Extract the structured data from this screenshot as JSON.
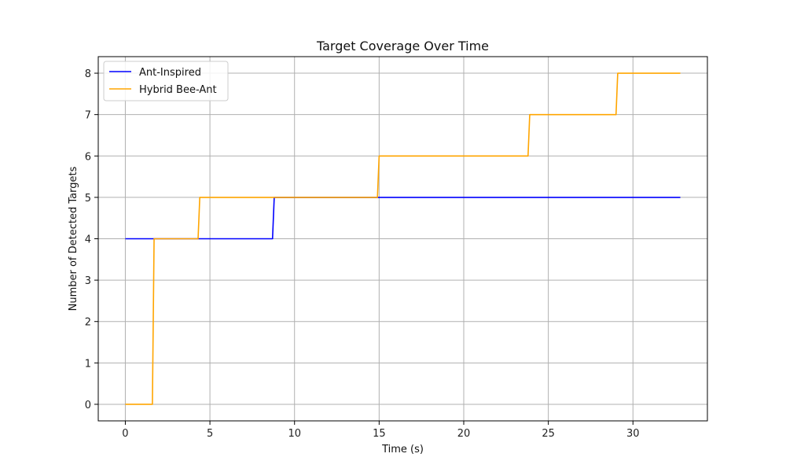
{
  "chart_data": {
    "type": "line",
    "title": "Target Coverage Over Time",
    "xlabel": "Time (s)",
    "ylabel": "Number of Detected Targets",
    "xlim": [
      -1.6,
      34.4
    ],
    "ylim": [
      -0.4,
      8.4
    ],
    "xticks": [
      0,
      5,
      10,
      15,
      20,
      25,
      30
    ],
    "yticks": [
      0,
      1,
      2,
      3,
      4,
      5,
      6,
      7,
      8
    ],
    "grid": true,
    "legend_position": "top-left",
    "series": [
      {
        "name": "Ant-Inspired",
        "color": "#0000ff",
        "x": [
          0,
          8.7,
          8.8,
          32.8
        ],
        "y": [
          4,
          4,
          5,
          5
        ]
      },
      {
        "name": "Hybrid Bee-Ant",
        "color": "#ffa500",
        "x": [
          0,
          1.6,
          1.7,
          4.3,
          4.4,
          14.9,
          15.0,
          23.8,
          23.9,
          29.0,
          29.1,
          32.8
        ],
        "y": [
          0,
          0,
          4,
          4,
          5,
          5,
          6,
          6,
          7,
          7,
          8,
          8
        ]
      }
    ]
  }
}
